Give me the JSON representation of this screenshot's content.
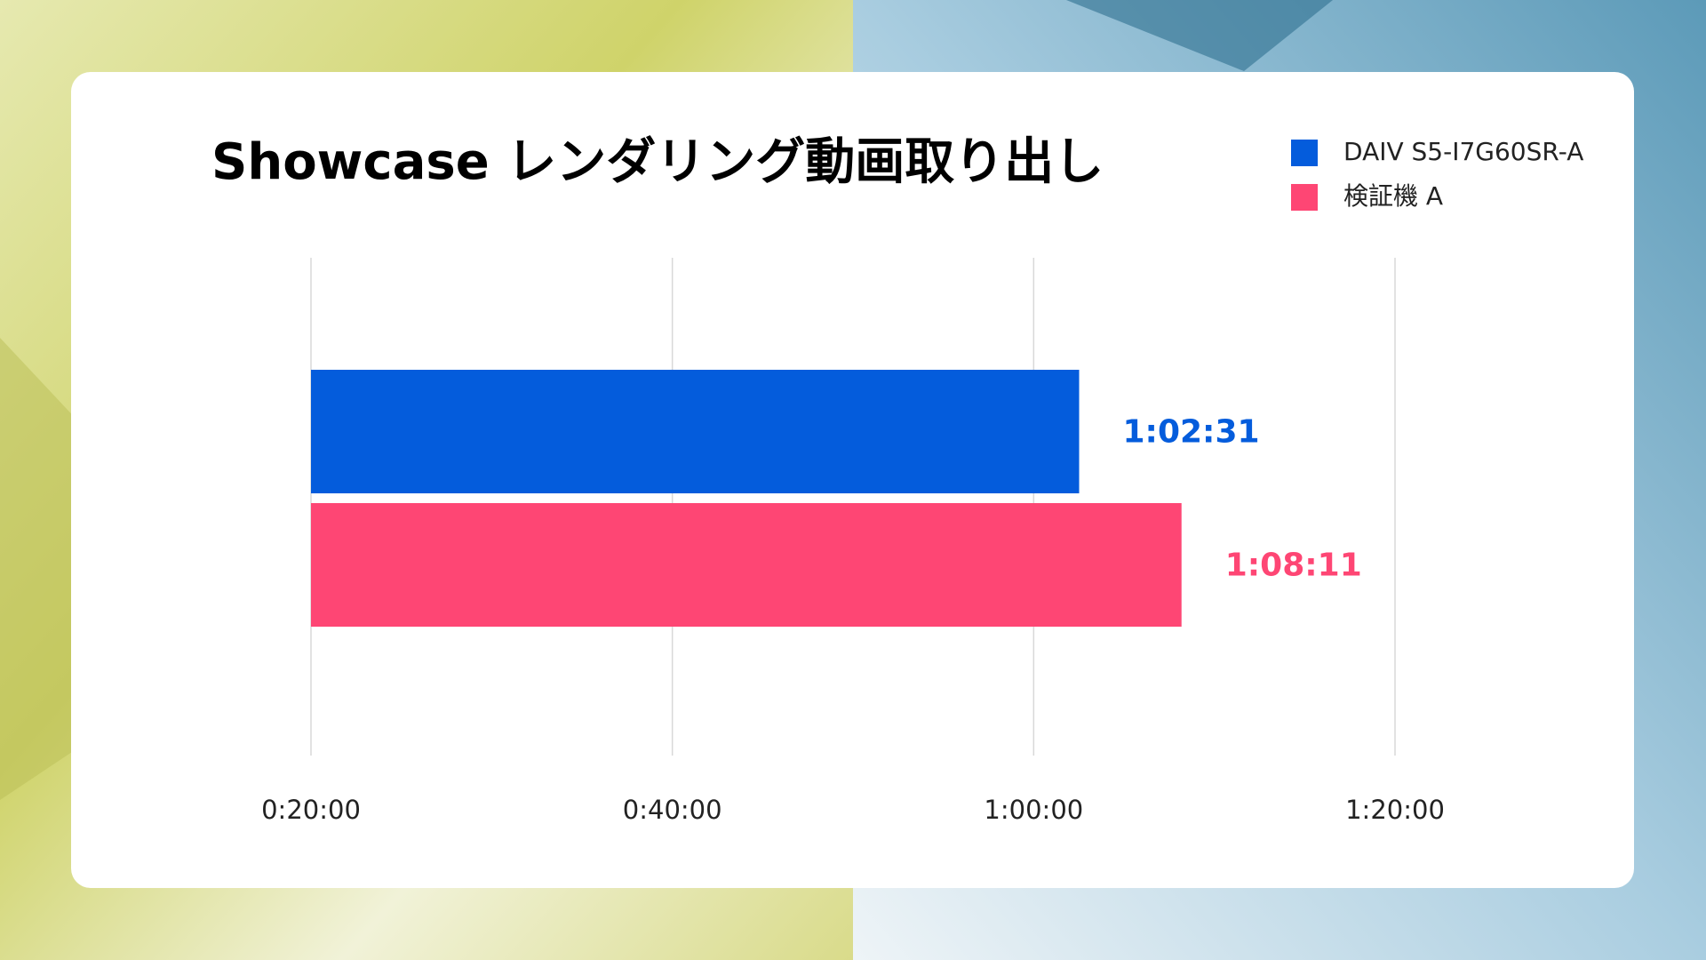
{
  "chart_data": {
    "type": "barh",
    "title": "Showcase レンダリング動画取り出し",
    "series": [
      {
        "name": "DAIV S5-I7G60SR-A",
        "color": "#045cdc",
        "values": [
          3751
        ],
        "value_labels": [
          "1:02:31"
        ]
      },
      {
        "name": "検証機 A",
        "color": "#fe4674",
        "values": [
          4091
        ],
        "value_labels": [
          "1:08:11"
        ]
      }
    ],
    "xlim": [
      1200,
      4800
    ],
    "xticks": [
      {
        "value": 1200,
        "label": "0:20:00"
      },
      {
        "value": 2400,
        "label": "0:40:00"
      },
      {
        "value": 3600,
        "label": "1:00:00"
      },
      {
        "value": 4800,
        "label": "1:20:00"
      }
    ],
    "grid": true,
    "legend": "top-right"
  }
}
